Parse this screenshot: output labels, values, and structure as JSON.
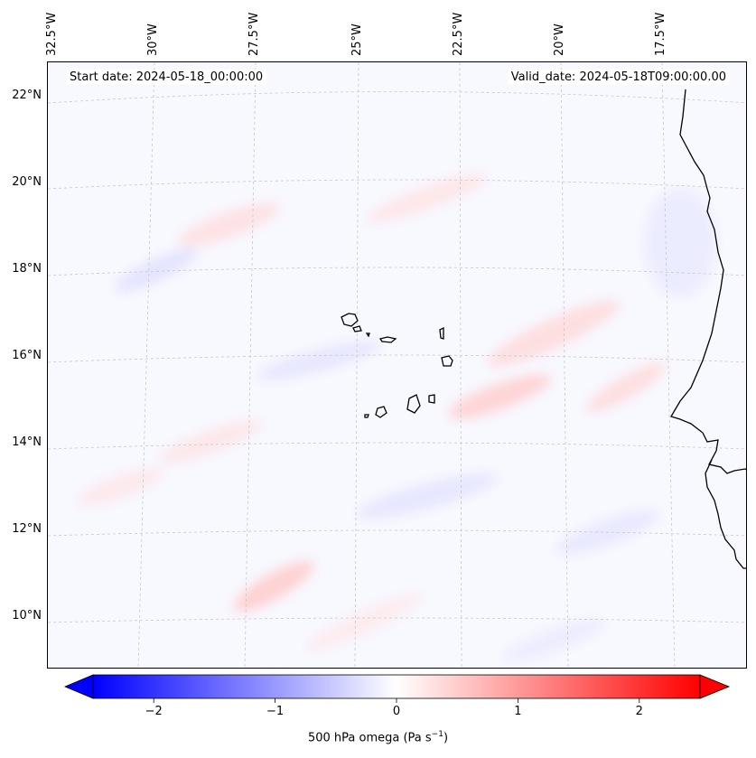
{
  "map": {
    "start_date": "Start date: 2024-05-18_00:00:00",
    "valid_date": "Valid_date: 2024-05-18T09:00:00.00",
    "lon_labels": [
      "32.5°W",
      "30°W",
      "27.5°W",
      "25°W",
      "22.5°W",
      "20°W",
      "17.5°W"
    ],
    "lat_labels": [
      "22°N",
      "20°N",
      "18°N",
      "16°N",
      "14°N",
      "12°N",
      "10°N"
    ],
    "field": "500 hPa omega",
    "region": "Cabo Verde / West African coast"
  },
  "colorbar": {
    "title": "500 hPa omega (Pa s",
    "title_sup": "−1",
    "title_end": ")",
    "ticks": [
      "−2",
      "−1",
      "0",
      "1",
      "2"
    ],
    "tick_values": [
      -2,
      -1,
      0,
      1,
      2
    ],
    "range": [
      -2.5,
      2.5
    ],
    "colormap": "bwr",
    "negative_color": "#0000ff",
    "zero_color": "#ffffff",
    "positive_color": "#ff0000"
  }
}
